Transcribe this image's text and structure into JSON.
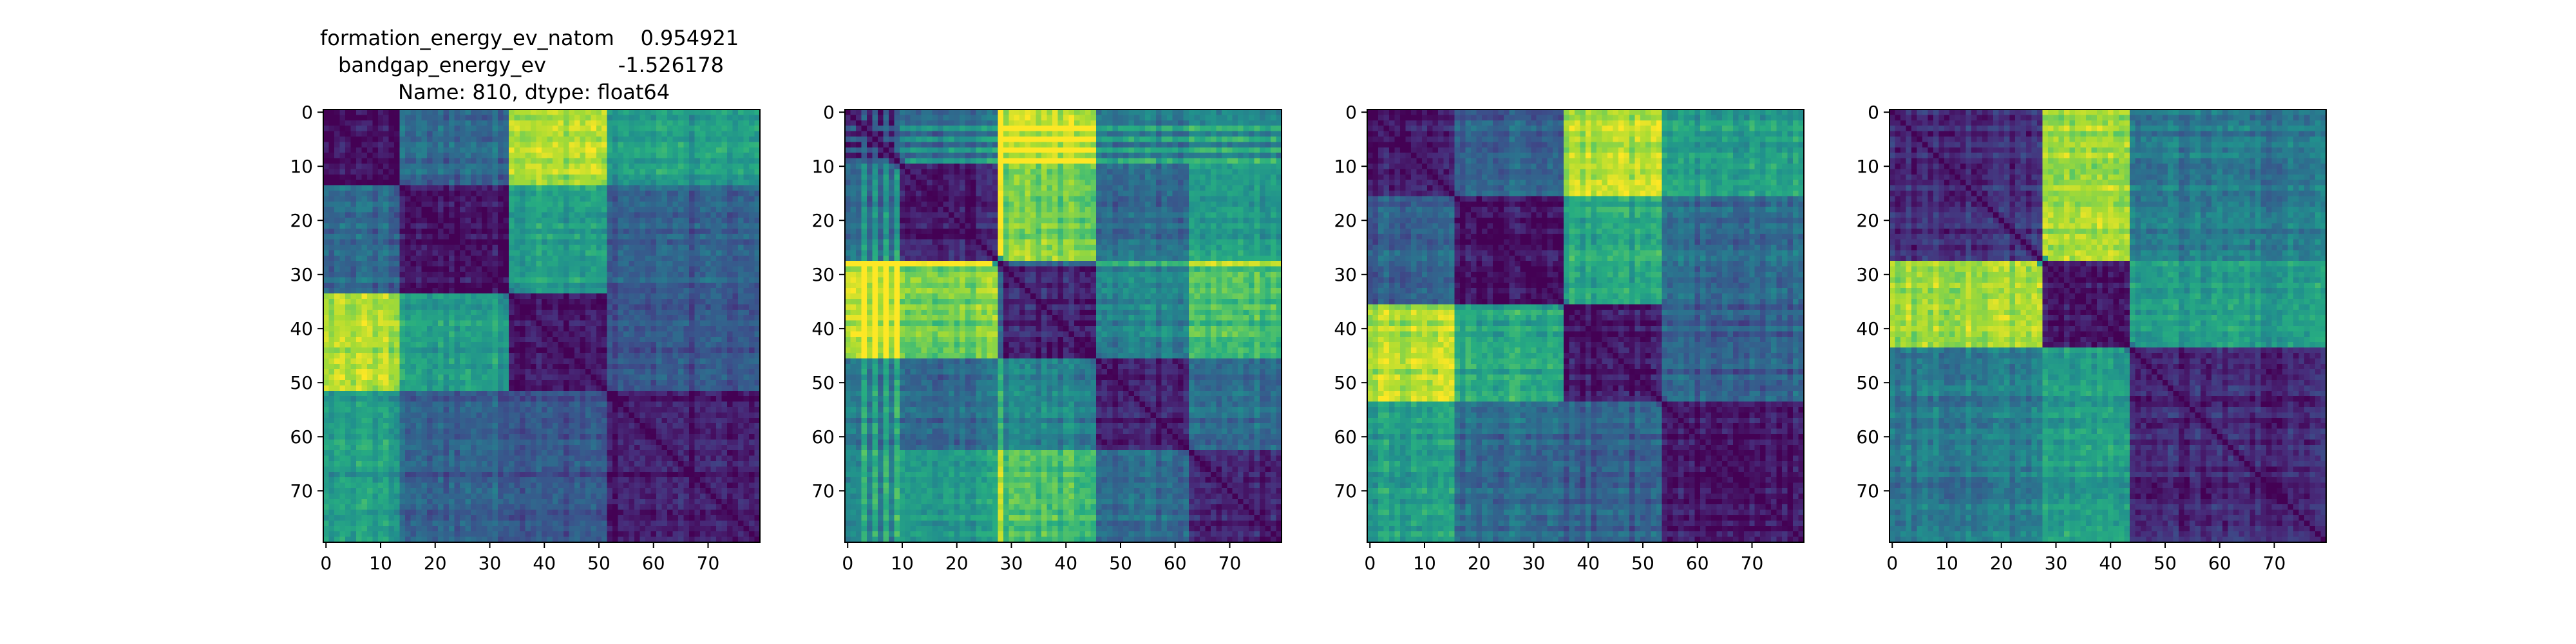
{
  "figure": {
    "title_lines": [
      "formation_energy_ev_natom    0.954921",
      "bandgap_energy_ev           -1.526178",
      "Name: 810, dtype: float64"
    ]
  },
  "chart_data": [
    {
      "type": "heatmap",
      "title_lines": [
        "formation_energy_ev_natom    0.954921",
        "bandgap_energy_ev           -1.526178",
        "Name: 810, dtype: float64"
      ],
      "size": 80,
      "x_ticks": [
        0,
        10,
        20,
        30,
        40,
        50,
        60,
        70
      ],
      "y_ticks": [
        0,
        10,
        20,
        30,
        40,
        50,
        60,
        70
      ],
      "xlim": [
        -0.5,
        79.5
      ],
      "ylim": [
        79.5,
        -0.5
      ],
      "colormap": "viridis",
      "value_range": [
        0,
        1
      ],
      "blocks": [
        {
          "start": 0,
          "end": 14
        },
        {
          "start": 14,
          "end": 34
        },
        {
          "start": 34,
          "end": 52
        },
        {
          "start": 52,
          "end": 80
        }
      ],
      "block_levels": [
        [
          0.05,
          0.35,
          0.88,
          0.55
        ],
        [
          0.35,
          0.05,
          0.55,
          0.3
        ],
        [
          0.88,
          0.55,
          0.05,
          0.25
        ],
        [
          0.55,
          0.3,
          0.25,
          0.05
        ]
      ]
    },
    {
      "type": "heatmap",
      "size": 80,
      "x_ticks": [
        0,
        10,
        20,
        30,
        40,
        50,
        60,
        70
      ],
      "y_ticks": [
        0,
        10,
        20,
        30,
        40,
        50,
        60,
        70
      ],
      "xlim": [
        -0.5,
        79.5
      ],
      "ylim": [
        79.5,
        -0.5
      ],
      "colormap": "viridis",
      "value_range": [
        0,
        1
      ],
      "blocks": [
        {
          "start": 0,
          "end": 10
        },
        {
          "start": 10,
          "end": 28
        },
        {
          "start": 28,
          "end": 46
        },
        {
          "start": 46,
          "end": 63
        },
        {
          "start": 63,
          "end": 80
        }
      ],
      "block_levels": [
        [
          0.1,
          0.35,
          0.9,
          0.4,
          0.45
        ],
        [
          0.35,
          0.1,
          0.8,
          0.35,
          0.55
        ],
        [
          0.9,
          0.8,
          0.1,
          0.45,
          0.7
        ],
        [
          0.4,
          0.35,
          0.45,
          0.1,
          0.35
        ],
        [
          0.45,
          0.55,
          0.7,
          0.35,
          0.1
        ]
      ],
      "stripe_rows": [
        3,
        5,
        7,
        9,
        28
      ]
    },
    {
      "type": "heatmap",
      "size": 80,
      "x_ticks": [
        0,
        10,
        20,
        30,
        40,
        50,
        60,
        70
      ],
      "y_ticks": [
        0,
        10,
        20,
        30,
        40,
        50,
        60,
        70
      ],
      "xlim": [
        -0.5,
        79.5
      ],
      "ylim": [
        79.5,
        -0.5
      ],
      "colormap": "viridis",
      "value_range": [
        0,
        1
      ],
      "blocks": [
        {
          "start": 0,
          "end": 16
        },
        {
          "start": 16,
          "end": 36
        },
        {
          "start": 36,
          "end": 54
        },
        {
          "start": 54,
          "end": 80
        }
      ],
      "block_levels": [
        [
          0.05,
          0.3,
          0.88,
          0.55
        ],
        [
          0.3,
          0.05,
          0.6,
          0.35
        ],
        [
          0.88,
          0.6,
          0.05,
          0.3
        ],
        [
          0.55,
          0.35,
          0.3,
          0.05
        ]
      ]
    },
    {
      "type": "heatmap",
      "size": 80,
      "x_ticks": [
        0,
        10,
        20,
        30,
        40,
        50,
        60,
        70
      ],
      "y_ticks": [
        0,
        10,
        20,
        30,
        40,
        50,
        60,
        70
      ],
      "xlim": [
        -0.5,
        79.5
      ],
      "ylim": [
        79.5,
        -0.5
      ],
      "colormap": "viridis",
      "value_range": [
        0,
        1
      ],
      "blocks": [
        {
          "start": 0,
          "end": 28
        },
        {
          "start": 28,
          "end": 44
        },
        {
          "start": 44,
          "end": 80
        }
      ],
      "block_levels": [
        [
          0.12,
          0.85,
          0.4
        ],
        [
          0.85,
          0.05,
          0.55
        ],
        [
          0.4,
          0.55,
          0.1
        ]
      ]
    }
  ]
}
